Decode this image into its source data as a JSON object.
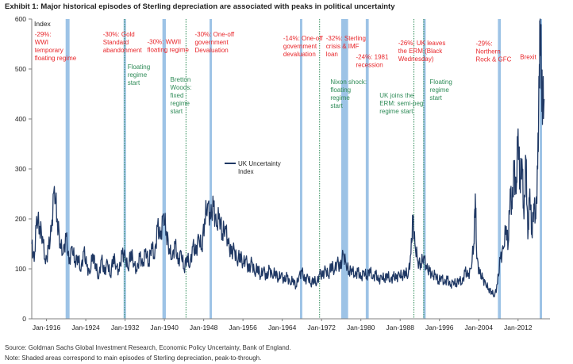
{
  "title": "Exhibit 1: Major historical episodes of Sterling depreciation are associated with peaks in political uncertainty",
  "source": "Source: Goldman Sachs Global Investment Research, Economic Policy Uncertainty, Bank of England.",
  "note": "Note: Shaded areas correspond to main episodes of Sterling depreciation, peak-to-through.",
  "colors": {
    "line": "#1f3864",
    "shade": "#9dc3e6",
    "red": "#e8272b",
    "green": "#2e8b57"
  },
  "chart_data": {
    "type": "line",
    "ylabel": "Index",
    "ylim": [
      0,
      600
    ],
    "yticks": [
      "0",
      "100",
      "200",
      "300",
      "400",
      "500",
      "600"
    ],
    "xlim": [
      1913.0,
      2018.5
    ],
    "xticks": [
      {
        "year": 1916,
        "label": "Jan-1916"
      },
      {
        "year": 1924,
        "label": "Jan-1924"
      },
      {
        "year": 1932,
        "label": "Jan-1932"
      },
      {
        "year": 1940,
        "label": "Jan-1940"
      },
      {
        "year": 1948,
        "label": "Jan-1948"
      },
      {
        "year": 1956,
        "label": "Jan-1956"
      },
      {
        "year": 1964,
        "label": "Jan-1964"
      },
      {
        "year": 1972,
        "label": "Jan-1972"
      },
      {
        "year": 1980,
        "label": "Jan-1980"
      },
      {
        "year": 1988,
        "label": "Jan-1988"
      },
      {
        "year": 1996,
        "label": "Jan-1996"
      },
      {
        "year": 2004,
        "label": "Jan-2004"
      },
      {
        "year": 2012,
        "label": "Jan-2012"
      }
    ],
    "legend": {
      "label": "UK Uncertainty Index",
      "placement": "center"
    },
    "shaded": [
      [
        1919.9,
        1920.7
      ],
      [
        1931.7,
        1931.9
      ],
      [
        1939.6,
        1940.3
      ],
      [
        1949.2,
        1949.6
      ],
      [
        1967.6,
        1967.9
      ],
      [
        1976.0,
        1977.4
      ],
      [
        1981.0,
        1981.6
      ],
      [
        1992.7,
        1993.2
      ],
      [
        2007.9,
        2008.5
      ],
      [
        2016.4,
        2016.8
      ]
    ],
    "green_lines": [
      1931.9,
      1944.4,
      1971.6,
      1990.8,
      1992.8
    ],
    "series": [
      {
        "name": "UK Uncertainty Index",
        "points": [
          [
            1913.0,
            150
          ],
          [
            1913.5,
            115
          ],
          [
            1914.0,
            205
          ],
          [
            1914.6,
            185
          ],
          [
            1915.2,
            165
          ],
          [
            1915.8,
            110
          ],
          [
            1916.4,
            140
          ],
          [
            1917.0,
            175
          ],
          [
            1917.6,
            265
          ],
          [
            1918.2,
            200
          ],
          [
            1918.8,
            150
          ],
          [
            1919.4,
            130
          ],
          [
            1920.0,
            165
          ],
          [
            1920.6,
            110
          ],
          [
            1921.2,
            145
          ],
          [
            1921.8,
            115
          ],
          [
            1922.4,
            125
          ],
          [
            1923.0,
            95
          ],
          [
            1923.6,
            135
          ],
          [
            1924.2,
            105
          ],
          [
            1924.8,
            90
          ],
          [
            1925.4,
            130
          ],
          [
            1926.0,
            110
          ],
          [
            1926.6,
            80
          ],
          [
            1927.2,
            120
          ],
          [
            1927.8,
            90
          ],
          [
            1928.4,
            115
          ],
          [
            1929.0,
            85
          ],
          [
            1929.6,
            125
          ],
          [
            1930.2,
            105
          ],
          [
            1930.8,
            95
          ],
          [
            1931.4,
            130
          ],
          [
            1932.0,
            125
          ],
          [
            1932.6,
            100
          ],
          [
            1933.2,
            135
          ],
          [
            1933.8,
            110
          ],
          [
            1934.4,
            95
          ],
          [
            1935.0,
            125
          ],
          [
            1935.6,
            105
          ],
          [
            1936.2,
            140
          ],
          [
            1936.8,
            110
          ],
          [
            1937.4,
            150
          ],
          [
            1938.0,
            120
          ],
          [
            1938.6,
            185
          ],
          [
            1939.2,
            160
          ],
          [
            1939.8,
            210
          ],
          [
            1940.4,
            175
          ],
          [
            1941.0,
            140
          ],
          [
            1941.6,
            120
          ],
          [
            1942.2,
            150
          ],
          [
            1942.8,
            110
          ],
          [
            1943.4,
            135
          ],
          [
            1944.0,
            100
          ],
          [
            1944.6,
            125
          ],
          [
            1945.2,
            105
          ],
          [
            1945.8,
            145
          ],
          [
            1946.4,
            130
          ],
          [
            1947.0,
            165
          ],
          [
            1947.6,
            140
          ],
          [
            1948.2,
            200
          ],
          [
            1948.8,
            230
          ],
          [
            1949.4,
            200
          ],
          [
            1950.0,
            225
          ],
          [
            1950.6,
            185
          ],
          [
            1951.2,
            210
          ],
          [
            1951.8,
            170
          ],
          [
            1952.4,
            185
          ],
          [
            1953.0,
            150
          ],
          [
            1953.6,
            130
          ],
          [
            1954.2,
            140
          ],
          [
            1954.8,
            115
          ],
          [
            1955.4,
            130
          ],
          [
            1956.0,
            110
          ],
          [
            1956.6,
            120
          ],
          [
            1957.2,
            95
          ],
          [
            1957.8,
            115
          ],
          [
            1958.4,
            90
          ],
          [
            1959.0,
            105
          ],
          [
            1959.6,
            85
          ],
          [
            1960.2,
            100
          ],
          [
            1960.8,
            80
          ],
          [
            1961.4,
            100
          ],
          [
            1962.0,
            85
          ],
          [
            1962.6,
            95
          ],
          [
            1963.2,
            80
          ],
          [
            1963.8,
            90
          ],
          [
            1964.4,
            75
          ],
          [
            1965.0,
            85
          ],
          [
            1965.6,
            70
          ],
          [
            1966.2,
            80
          ],
          [
            1966.8,
            65
          ],
          [
            1967.4,
            85
          ],
          [
            1968.0,
            95
          ],
          [
            1968.6,
            75
          ],
          [
            1969.2,
            85
          ],
          [
            1969.8,
            70
          ],
          [
            1970.4,
            80
          ],
          [
            1971.0,
            70
          ],
          [
            1971.6,
            90
          ],
          [
            1972.2,
            85
          ],
          [
            1972.8,
            100
          ],
          [
            1973.4,
            85
          ],
          [
            1974.0,
            110
          ],
          [
            1974.6,
            95
          ],
          [
            1975.2,
            115
          ],
          [
            1975.8,
            100
          ],
          [
            1976.4,
            130
          ],
          [
            1977.0,
            110
          ],
          [
            1977.6,
            95
          ],
          [
            1978.2,
            100
          ],
          [
            1978.8,
            85
          ],
          [
            1979.4,
            95
          ],
          [
            1980.0,
            80
          ],
          [
            1980.6,
            95
          ],
          [
            1981.2,
            85
          ],
          [
            1981.8,
            100
          ],
          [
            1982.4,
            80
          ],
          [
            1983.0,
            90
          ],
          [
            1983.6,
            75
          ],
          [
            1984.2,
            85
          ],
          [
            1984.8,
            80
          ],
          [
            1985.4,
            90
          ],
          [
            1986.0,
            75
          ],
          [
            1986.6,
            85
          ],
          [
            1987.2,
            80
          ],
          [
            1987.8,
            90
          ],
          [
            1988.4,
            85
          ],
          [
            1989.0,
            95
          ],
          [
            1989.6,
            85
          ],
          [
            1990.2,
            130
          ],
          [
            1990.6,
            200
          ],
          [
            1991.0,
            150
          ],
          [
            1991.6,
            115
          ],
          [
            1992.2,
            110
          ],
          [
            1992.8,
            125
          ],
          [
            1993.4,
            100
          ],
          [
            1994.0,
            95
          ],
          [
            1994.6,
            85
          ],
          [
            1995.2,
            90
          ],
          [
            1995.8,
            75
          ],
          [
            1996.4,
            85
          ],
          [
            1997.0,
            70
          ],
          [
            1997.6,
            80
          ],
          [
            1998.2,
            65
          ],
          [
            1998.8,
            75
          ],
          [
            1999.4,
            70
          ],
          [
            2000.0,
            80
          ],
          [
            2000.6,
            70
          ],
          [
            2001.2,
            95
          ],
          [
            2001.8,
            85
          ],
          [
            2002.4,
            100
          ],
          [
            2003.0,
            150
          ],
          [
            2003.3,
            250
          ],
          [
            2003.6,
            120
          ],
          [
            2004.2,
            90
          ],
          [
            2004.8,
            80
          ],
          [
            2005.4,
            70
          ],
          [
            2006.0,
            60
          ],
          [
            2006.6,
            55
          ],
          [
            2007.2,
            45
          ],
          [
            2007.8,
            70
          ],
          [
            2008.4,
            120
          ],
          [
            2009.0,
            140
          ],
          [
            2009.6,
            185
          ],
          [
            2010.0,
            150
          ],
          [
            2010.4,
            260
          ],
          [
            2010.8,
            220
          ],
          [
            2011.2,
            300
          ],
          [
            2011.6,
            250
          ],
          [
            2012.0,
            380
          ],
          [
            2012.4,
            270
          ],
          [
            2012.8,
            320
          ],
          [
            2013.2,
            200
          ],
          [
            2013.6,
            320
          ],
          [
            2014.0,
            160
          ],
          [
            2014.4,
            260
          ],
          [
            2014.8,
            170
          ],
          [
            2015.2,
            230
          ],
          [
            2015.6,
            200
          ],
          [
            2016.0,
            300
          ],
          [
            2016.3,
            470
          ],
          [
            2016.5,
            600
          ],
          [
            2016.8,
            480
          ],
          [
            2017.0,
            430
          ],
          [
            2017.3,
            440
          ]
        ]
      }
    ],
    "annotations": [
      {
        "year": 1913.6,
        "level": 565,
        "color": "red",
        "lines": [
          "-29%:",
          "WWI",
          "temporary",
          "floating regime"
        ]
      },
      {
        "year": 1927.5,
        "level": 565,
        "color": "red",
        "lines": [
          "-30%:  Gold",
          "Standard",
          "abandonment"
        ]
      },
      {
        "year": 1936.5,
        "level": 550,
        "color": "red",
        "lines": [
          "-30%: WWII",
          "floating regime"
        ]
      },
      {
        "year": 1946.2,
        "level": 565,
        "color": "red",
        "lines": [
          "-30%: One-off",
          "government",
          "Devaluation"
        ]
      },
      {
        "year": 1964.2,
        "level": 557,
        "color": "red",
        "lines": [
          "-14%: One-off",
          "government",
          "devaluation"
        ]
      },
      {
        "year": 1972.9,
        "level": 557,
        "color": "red",
        "lines": [
          "-32%: Sterling",
          "crisis & IMF",
          "loan"
        ]
      },
      {
        "year": 1979.0,
        "level": 520,
        "color": "red",
        "lines": [
          "-24%: 1981",
          "recession"
        ]
      },
      {
        "year": 1987.6,
        "level": 548,
        "color": "red",
        "lines": [
          "-26%: UK leaves",
          "the ERM (Black",
          "Wednesday)"
        ]
      },
      {
        "year": 2003.4,
        "level": 547,
        "color": "red",
        "lines": [
          "-29%:",
          "Northern",
          "Rock & GFC"
        ]
      },
      {
        "year": 2012.4,
        "level": 520,
        "color": "red",
        "lines": [
          "Brexit"
        ]
      },
      {
        "year": 1932.5,
        "level": 500,
        "color": "green",
        "lines": [
          "Floating",
          "regime",
          "start"
        ]
      },
      {
        "year": 1941.2,
        "level": 475,
        "color": "green",
        "lines": [
          "Bretton",
          "Woods:",
          "fixed",
          "regime",
          "start"
        ]
      },
      {
        "year": 1973.8,
        "level": 470,
        "color": "green",
        "lines": [
          "Nixon shock:",
          "floating",
          "regime",
          "start"
        ]
      },
      {
        "year": 1983.8,
        "level": 443,
        "color": "green",
        "lines": [
          "UK joins the",
          "ERM: semi-peg",
          "regime start"
        ]
      },
      {
        "year": 1994.0,
        "level": 470,
        "color": "green",
        "lines": [
          "Floating",
          "regime",
          "start"
        ]
      }
    ]
  }
}
